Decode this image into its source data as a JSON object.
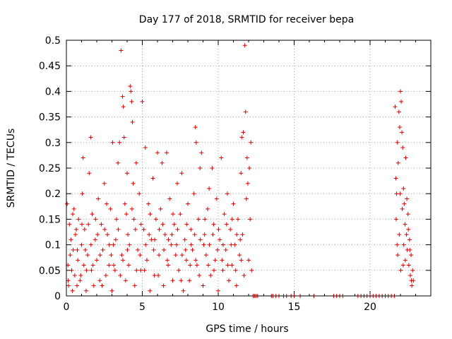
{
  "chart_data": {
    "type": "scatter",
    "title": "Day 177 of 2018, SRMTID for receiver bepa",
    "xlabel": "GPS time / hours",
    "ylabel": "SRMTID / TECUs",
    "xlim": [
      0,
      24
    ],
    "ylim": [
      0,
      0.5
    ],
    "xticks": [
      0,
      5,
      10,
      15,
      20
    ],
    "yticks": [
      0,
      0.05,
      0.1,
      0.15,
      0.2,
      0.25,
      0.3,
      0.35,
      0.4,
      0.45,
      0.5
    ],
    "grid": true,
    "marker": "+",
    "color": "#dd0000",
    "series": [
      {
        "name": "SRMTID",
        "points": [
          [
            0.05,
            0.18
          ],
          [
            0.1,
            0.06
          ],
          [
            0.15,
            0.02
          ],
          [
            0.2,
            0.14
          ],
          [
            0.3,
            0.11
          ],
          [
            0.35,
            0.05
          ],
          [
            0.4,
            0.01
          ],
          [
            0.45,
            0.09
          ],
          [
            0.5,
            0.17
          ],
          [
            0.55,
            0.04
          ],
          [
            0.6,
            0.12
          ],
          [
            0.7,
            0.02
          ],
          [
            0.75,
            0.07
          ],
          [
            0.8,
            0.15
          ],
          [
            0.9,
            0.03
          ],
          [
            1.0,
            0.1
          ],
          [
            1.05,
            0.2
          ],
          [
            1.1,
            0.27
          ],
          [
            1.15,
            0.06
          ],
          [
            1.2,
            0.13
          ],
          [
            1.3,
            0.01
          ],
          [
            1.4,
            0.08
          ],
          [
            1.5,
            0.24
          ],
          [
            1.6,
            0.31
          ],
          [
            1.65,
            0.05
          ],
          [
            1.7,
            0.16
          ],
          [
            1.8,
            0.02
          ],
          [
            1.9,
            0.11
          ],
          [
            2.0,
            0.07
          ],
          [
            2.1,
            0.19
          ],
          [
            2.2,
            0.03
          ],
          [
            2.3,
            0.14
          ],
          [
            2.4,
            0.09
          ],
          [
            2.5,
            0.22
          ],
          [
            2.6,
            0.04
          ],
          [
            2.7,
            0.12
          ],
          [
            2.8,
            0.06
          ],
          [
            2.9,
            0.17
          ],
          [
            3.0,
            0.01
          ],
          [
            3.05,
            0.3
          ],
          [
            3.1,
            0.1
          ],
          [
            3.2,
            0.05
          ],
          [
            3.3,
            0.15
          ],
          [
            3.4,
            0.26
          ],
          [
            3.5,
            0.3
          ],
          [
            3.6,
            0.48
          ],
          [
            3.65,
            0.08
          ],
          [
            3.7,
            0.39
          ],
          [
            3.75,
            0.37
          ],
          [
            3.8,
            0.31
          ],
          [
            3.85,
            0.18
          ],
          [
            3.9,
            0.03
          ],
          [
            4.0,
            0.24
          ],
          [
            4.05,
            0.12
          ],
          [
            4.1,
            0.06
          ],
          [
            4.2,
            0.41
          ],
          [
            4.25,
            0.4
          ],
          [
            4.3,
            0.38
          ],
          [
            4.35,
            0.34
          ],
          [
            4.4,
            0.22
          ],
          [
            4.45,
            0.15
          ],
          [
            4.5,
            0.02
          ],
          [
            4.6,
            0.26
          ],
          [
            4.7,
            0.09
          ],
          [
            4.8,
            0.2
          ],
          [
            4.9,
            0.05
          ],
          [
            5.0,
            0.38
          ],
          [
            5.1,
            0.13
          ],
          [
            5.2,
            0.29
          ],
          [
            5.3,
            0.07
          ],
          [
            5.4,
            0.18
          ],
          [
            5.5,
            0.01
          ],
          [
            5.6,
            0.11
          ],
          [
            5.7,
            0.23
          ],
          [
            5.8,
            0.04
          ],
          [
            5.9,
            0.15
          ],
          [
            6.0,
            0.28
          ],
          [
            6.1,
            0.08
          ],
          [
            6.2,
            0.17
          ],
          [
            6.3,
            0.26
          ],
          [
            6.4,
            0.02
          ],
          [
            6.5,
            0.12
          ],
          [
            6.6,
            0.28
          ],
          [
            6.7,
            0.06
          ],
          [
            6.8,
            0.19
          ],
          [
            6.9,
            0.1
          ],
          [
            7.0,
            0.03
          ],
          [
            7.1,
            0.14
          ],
          [
            7.2,
            0.08
          ],
          [
            7.3,
            0.22
          ],
          [
            7.4,
            0.05
          ],
          [
            7.5,
            0.16
          ],
          [
            7.6,
            0.24
          ],
          [
            7.7,
            0.01
          ],
          [
            7.8,
            0.11
          ],
          [
            7.9,
            0.07
          ],
          [
            8.0,
            0.18
          ],
          [
            8.1,
            0.03
          ],
          [
            8.2,
            0.13
          ],
          [
            8.3,
            0.09
          ],
          [
            8.4,
            0.2
          ],
          [
            8.5,
            0.33
          ],
          [
            8.55,
            0.3
          ],
          [
            8.6,
            0.06
          ],
          [
            8.7,
            0.15
          ],
          [
            8.8,
            0.25
          ],
          [
            8.9,
            0.28
          ],
          [
            9.0,
            0.02
          ],
          [
            9.1,
            0.12
          ],
          [
            9.2,
            0.08
          ],
          [
            9.3,
            0.17
          ],
          [
            9.4,
            0.21
          ],
          [
            9.5,
            0.04
          ],
          [
            9.6,
            0.25
          ],
          [
            9.7,
            0.14
          ],
          [
            9.8,
            0.07
          ],
          [
            9.9,
            0.19
          ],
          [
            10.0,
            0.01
          ],
          [
            10.1,
            0.11
          ],
          [
            10.2,
            0.27
          ],
          [
            10.3,
            0.05
          ],
          [
            10.4,
            0.16
          ],
          [
            10.5,
            0.09
          ],
          [
            10.6,
            0.2
          ],
          [
            10.7,
            0.03
          ],
          [
            10.8,
            0.13
          ],
          [
            10.9,
            0.06
          ],
          [
            11.0,
            0.18
          ],
          [
            11.1,
            0.1
          ],
          [
            11.2,
            0.02
          ],
          [
            11.3,
            0.15
          ],
          [
            11.4,
            0.08
          ],
          [
            11.5,
            0.24
          ],
          [
            11.55,
            0.31
          ],
          [
            11.6,
            0.12
          ],
          [
            11.65,
            0.32
          ],
          [
            11.7,
            0.04
          ],
          [
            11.75,
            0.49
          ],
          [
            11.8,
            0.36
          ],
          [
            11.85,
            0.19
          ],
          [
            11.9,
            0.27
          ],
          [
            11.95,
            0.22
          ],
          [
            12.0,
            0.07
          ],
          [
            12.05,
            0.25
          ],
          [
            12.1,
            0.15
          ],
          [
            12.15,
            0.3
          ],
          [
            12.2,
            0.05
          ],
          [
            0.25,
            0.08
          ],
          [
            0.65,
            0.13
          ],
          [
            0.95,
            0.04
          ],
          [
            1.25,
            0.09
          ],
          [
            1.45,
            0.14
          ],
          [
            1.75,
            0.06
          ],
          [
            2.05,
            0.12
          ],
          [
            2.35,
            0.02
          ],
          [
            2.65,
            0.18
          ],
          [
            2.95,
            0.08
          ],
          [
            3.25,
            0.11
          ],
          [
            3.55,
            0.04
          ],
          [
            3.95,
            0.16
          ],
          [
            4.15,
            0.1
          ],
          [
            4.55,
            0.13
          ],
          [
            4.85,
            0.08
          ],
          [
            5.15,
            0.05
          ],
          [
            5.45,
            0.12
          ],
          [
            5.75,
            0.09
          ],
          [
            6.05,
            0.04
          ],
          [
            6.35,
            0.14
          ],
          [
            6.65,
            0.07
          ],
          [
            6.95,
            0.12
          ],
          [
            7.25,
            0.1
          ],
          [
            7.55,
            0.03
          ],
          [
            7.85,
            0.09
          ],
          [
            8.15,
            0.06
          ],
          [
            8.45,
            0.12
          ],
          [
            8.75,
            0.04
          ],
          [
            9.05,
            0.1
          ],
          [
            9.35,
            0.06
          ],
          [
            9.65,
            0.12
          ],
          [
            9.95,
            0.09
          ],
          [
            10.25,
            0.07
          ],
          [
            10.55,
            0.14
          ],
          [
            10.85,
            0.1
          ],
          [
            11.15,
            0.05
          ],
          [
            11.45,
            0.11
          ],
          [
            0.12,
            0.03
          ],
          [
            0.42,
            0.16
          ],
          [
            0.72,
            0.09
          ],
          [
            1.02,
            0.14
          ],
          [
            1.32,
            0.05
          ],
          [
            1.62,
            0.1
          ],
          [
            1.92,
            0.15
          ],
          [
            2.22,
            0.08
          ],
          [
            2.52,
            0.13
          ],
          [
            2.82,
            0.1
          ],
          [
            3.12,
            0.06
          ],
          [
            3.42,
            0.13
          ],
          [
            3.72,
            0.07
          ],
          [
            4.02,
            0.09
          ],
          [
            4.32,
            0.17
          ],
          [
            4.62,
            0.05
          ],
          [
            4.92,
            0.14
          ],
          [
            5.22,
            0.1
          ],
          [
            5.52,
            0.16
          ],
          [
            5.82,
            0.11
          ],
          [
            6.12,
            0.13
          ],
          [
            6.42,
            0.09
          ],
          [
            6.72,
            0.11
          ],
          [
            7.02,
            0.16
          ],
          [
            7.32,
            0.13
          ],
          [
            7.62,
            0.08
          ],
          [
            7.92,
            0.14
          ],
          [
            8.22,
            0.1
          ],
          [
            8.52,
            0.07
          ],
          [
            8.82,
            0.11
          ],
          [
            9.12,
            0.15
          ],
          [
            9.42,
            0.1
          ],
          [
            9.72,
            0.05
          ],
          [
            10.02,
            0.13
          ],
          [
            10.32,
            0.1
          ],
          [
            10.62,
            0.06
          ],
          [
            10.92,
            0.15
          ],
          [
            11.22,
            0.12
          ],
          [
            11.52,
            0.07
          ],
          [
            12.3,
            0.0
          ],
          [
            12.4,
            0.0
          ],
          [
            12.5,
            0.0
          ],
          [
            12.6,
            0.0
          ],
          [
            13.5,
            0.0
          ],
          [
            13.6,
            0.0
          ],
          [
            13.8,
            0.0
          ],
          [
            14.0,
            0.0
          ],
          [
            14.3,
            0.0
          ],
          [
            14.5,
            0.0
          ],
          [
            14.8,
            0.0
          ],
          [
            15.0,
            0.0
          ],
          [
            15.4,
            0.0
          ],
          [
            16.3,
            0.0
          ],
          [
            17.6,
            0.0
          ],
          [
            17.8,
            0.0
          ],
          [
            18.0,
            0.0
          ],
          [
            18.2,
            0.0
          ],
          [
            19.2,
            0.0
          ],
          [
            19.4,
            0.0
          ],
          [
            19.6,
            0.0
          ],
          [
            19.8,
            0.0
          ],
          [
            20.0,
            0.0
          ],
          [
            20.2,
            0.0
          ],
          [
            20.4,
            0.0
          ],
          [
            20.6,
            0.0
          ],
          [
            20.8,
            0.0
          ],
          [
            21.0,
            0.0
          ],
          [
            21.2,
            0.0
          ],
          [
            21.4,
            0.0
          ],
          [
            21.6,
            0.0
          ],
          [
            21.65,
            0.37
          ],
          [
            21.7,
            0.23
          ],
          [
            21.75,
            0.2
          ],
          [
            21.8,
            0.3
          ],
          [
            21.85,
            0.26
          ],
          [
            21.9,
            0.36
          ],
          [
            21.95,
            0.33
          ],
          [
            22.0,
            0.4
          ],
          [
            22.05,
            0.38
          ],
          [
            22.1,
            0.32
          ],
          [
            22.15,
            0.29
          ],
          [
            22.2,
            0.21
          ],
          [
            22.25,
            0.18
          ],
          [
            22.3,
            0.14
          ],
          [
            22.35,
            0.27
          ],
          [
            22.4,
            0.12
          ],
          [
            22.45,
            0.09
          ],
          [
            22.5,
            0.16
          ],
          [
            22.55,
            0.06
          ],
          [
            22.6,
            0.11
          ],
          [
            22.65,
            0.04
          ],
          [
            22.7,
            0.08
          ],
          [
            22.75,
            0.02
          ],
          [
            22.8,
            0.05
          ],
          [
            22.85,
            0.03
          ],
          [
            21.72,
            0.15
          ],
          [
            21.82,
            0.08
          ],
          [
            21.92,
            0.12
          ],
          [
            22.02,
            0.05
          ],
          [
            22.12,
            0.17
          ],
          [
            22.22,
            0.1
          ],
          [
            22.32,
            0.07
          ],
          [
            22.42,
            0.19
          ],
          [
            22.52,
            0.13
          ],
          [
            22.62,
            0.09
          ],
          [
            22.72,
            0.03
          ],
          [
            21.78,
            0.1
          ],
          [
            21.98,
            0.2
          ],
          [
            22.18,
            0.06
          ]
        ]
      }
    ]
  }
}
